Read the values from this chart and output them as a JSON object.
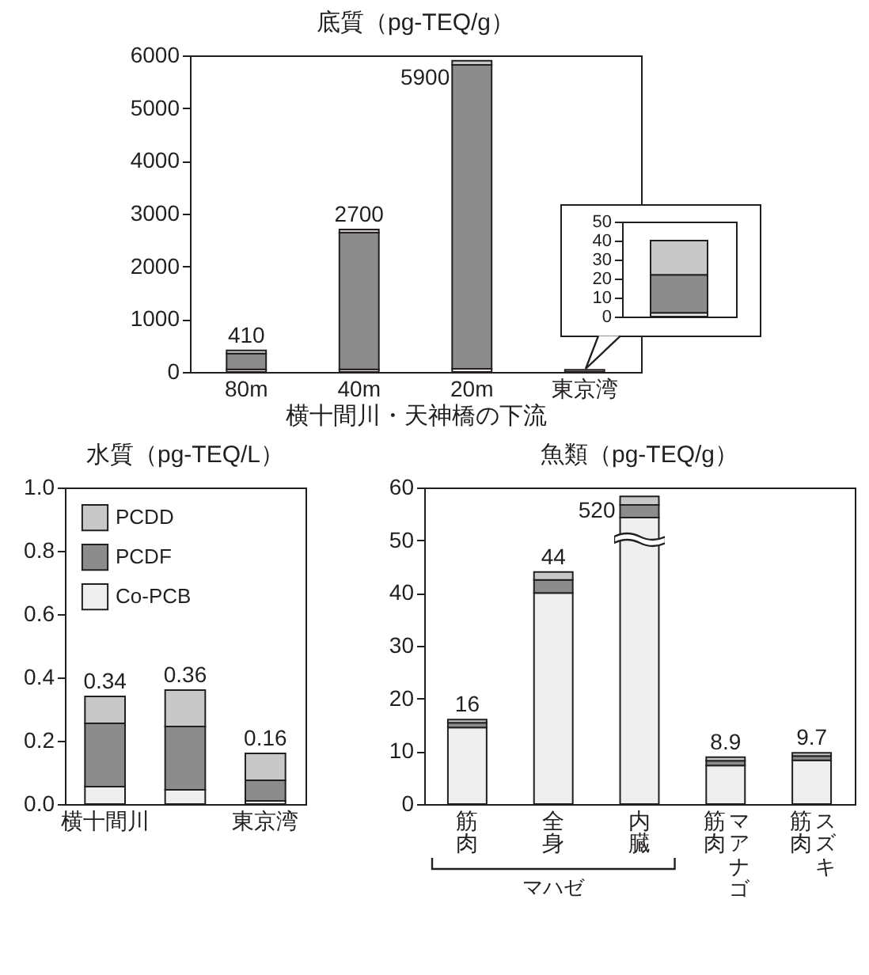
{
  "chart_data": [
    {
      "type": "bar",
      "title": "底質（pg-TEQ/g）",
      "xlabel": "横十間川・天神橋の下流",
      "categories": [
        "80m",
        "40m",
        "20m",
        "東京湾"
      ],
      "stacked": true,
      "series": [
        {
          "color": "#efefef",
          "values": [
            50,
            50,
            60,
            null
          ]
        },
        {
          "color": "#8c8c8c",
          "values": [
            300,
            2590,
            5760,
            40
          ]
        },
        {
          "color": "#c8c8c8",
          "values": [
            60,
            60,
            80,
            null
          ]
        }
      ],
      "totals": [
        "410",
        "2700",
        "5900",
        null
      ],
      "ylim": [
        0,
        6000
      ],
      "yticks": [
        0,
        1000,
        2000,
        3000,
        4000,
        5000,
        6000
      ]
    },
    {
      "type": "bar",
      "categories": [
        null
      ],
      "stacked": true,
      "tick_labels": "y",
      "series": [
        {
          "color": "#efefef",
          "values": [
            2
          ]
        },
        {
          "color": "#8c8c8c",
          "values": [
            20
          ]
        },
        {
          "color": "#c8c8c8",
          "values": [
            18
          ]
        }
      ],
      "ylim": [
        0,
        50
      ],
      "yticks": [
        0,
        10,
        20,
        30,
        40,
        50
      ]
    },
    {
      "type": "bar",
      "title": "水質（pg-TEQ/L）",
      "categories": [
        "横十間川",
        null,
        "東京湾"
      ],
      "stacked": true,
      "legend": "top left",
      "series": [
        {
          "name": "Co-PCB",
          "color": "#efefef",
          "values": [
            0.055,
            0.045,
            0.01
          ]
        },
        {
          "name": "PCDF",
          "color": "#8c8c8c",
          "values": [
            0.2,
            0.2,
            0.065
          ]
        },
        {
          "name": "PCDD",
          "color": "#c8c8c8",
          "values": [
            0.085,
            0.115,
            0.085
          ]
        }
      ],
      "totals": [
        "0.34",
        "0.36",
        "0.16"
      ],
      "ylim": [
        0,
        1
      ],
      "yticks": [
        {
          "value": 0,
          "label": "0.0"
        },
        {
          "value": 0.2,
          "label": "0.2"
        },
        {
          "value": 0.4,
          "label": "0.4"
        },
        {
          "value": 0.6,
          "label": "0.6"
        },
        {
          "value": 0.8,
          "label": "0.8"
        },
        {
          "value": 1,
          "label": "1.0"
        }
      ]
    },
    {
      "type": "bar",
      "title": "魚類（pg-TEQ/g）",
      "categories": [
        "筋肉",
        "全身",
        "内臓",
        "筋肉",
        "筋肉"
      ],
      "stacked": true,
      "series": [
        {
          "color": "#efefef",
          "values": [
            14.5,
            40,
            54.3,
            7.3,
            8.3
          ]
        },
        {
          "color": "#8c8c8c",
          "values": [
            0.9,
            2.5,
            2.4,
            0.9,
            0.8
          ]
        },
        {
          "color": "#c8c8c8",
          "values": [
            0.6,
            1.5,
            1.6,
            0.7,
            0.6
          ]
        }
      ],
      "totals": [
        "16",
        "44",
        null,
        "8.9",
        "9.7"
      ],
      "annotations": [
        "520",
        "マハゼ",
        "マアナゴ",
        "スズキ"
      ],
      "ylim": [
        0,
        60
      ],
      "yticks": [
        0,
        10,
        20,
        30,
        40,
        50,
        60
      ]
    }
  ]
}
